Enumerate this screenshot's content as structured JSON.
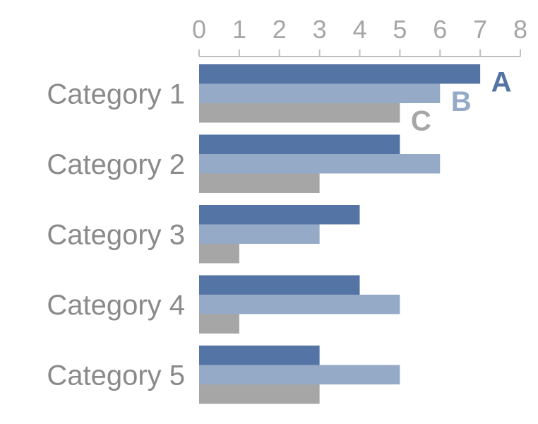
{
  "chart_data": {
    "type": "bar",
    "orientation": "horizontal",
    "categories": [
      "Category 1",
      "Category 2",
      "Category 3",
      "Category 4",
      "Category 5"
    ],
    "series": [
      {
        "name": "A",
        "values": [
          7,
          5,
          4,
          4,
          3
        ],
        "color": "#5574a6"
      },
      {
        "name": "B",
        "values": [
          6,
          6,
          3,
          5,
          5
        ],
        "color": "#95aac7"
      },
      {
        "name": "C",
        "values": [
          5,
          3,
          1,
          1,
          3
        ],
        "color": "#a6a6a6"
      }
    ],
    "xlim": [
      0,
      8
    ],
    "x_ticks": [
      "0",
      "1",
      "2",
      "3",
      "4",
      "5",
      "6",
      "7",
      "8"
    ],
    "x_axis_position": "top",
    "grid": false,
    "legend": "inline labels at end of Category 1 bars"
  }
}
